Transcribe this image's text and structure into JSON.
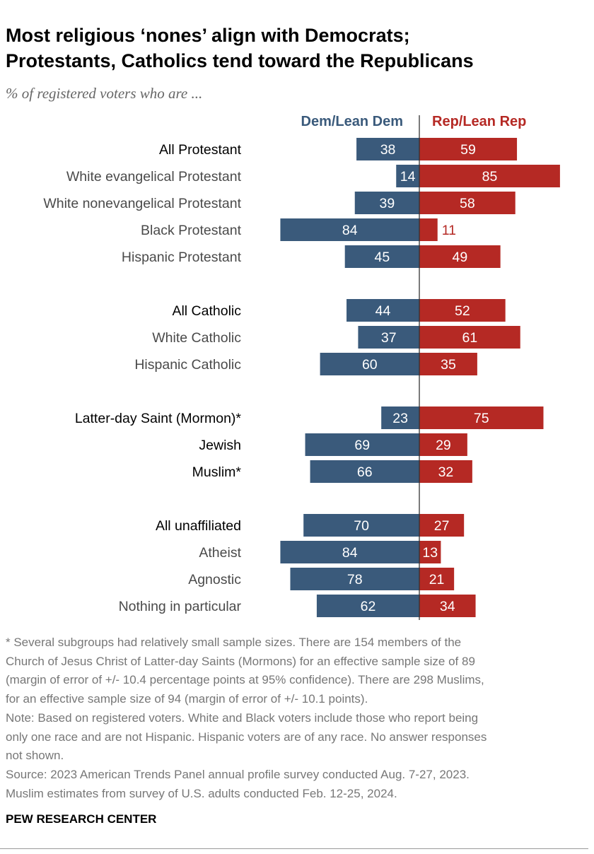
{
  "title_lines": [
    "Most religious ‘nones’ align with Democrats;",
    "Protestants, Catholics tend toward the Republicans"
  ],
  "subtitle": "% of registered voters who are ...",
  "colors": {
    "dem": "#3a5a7b",
    "rep": "#b52924",
    "axis": "#333333"
  },
  "chart_data": {
    "type": "bar",
    "orientation": "diverging-horizontal",
    "categories": [
      "All Protestant",
      "White evangelical Protestant",
      "White nonevangelical Protestant",
      "Black Protestant",
      "Hispanic Protestant",
      "All Catholic",
      "White Catholic",
      "Hispanic Catholic",
      "Latter-day Saint (Mormon)*",
      "Jewish",
      "Muslim*",
      "All unaffiliated",
      "Atheist",
      "Agnostic",
      "Nothing in particular"
    ],
    "category_emphasis": [
      true,
      false,
      false,
      false,
      false,
      true,
      false,
      false,
      true,
      true,
      true,
      true,
      false,
      false,
      false
    ],
    "groups": [
      [
        0,
        1,
        2,
        3,
        4
      ],
      [
        5,
        6,
        7
      ],
      [
        8,
        9,
        10
      ],
      [
        11,
        12,
        13,
        14
      ]
    ],
    "series": [
      {
        "name": "Dem/Lean Dem",
        "values": [
          38,
          14,
          39,
          84,
          45,
          44,
          37,
          60,
          23,
          69,
          66,
          70,
          84,
          78,
          62
        ]
      },
      {
        "name": "Rep/Lean Rep",
        "values": [
          59,
          85,
          58,
          11,
          49,
          52,
          61,
          35,
          75,
          29,
          32,
          27,
          13,
          21,
          34
        ]
      }
    ],
    "xlim": [
      0,
      100
    ]
  },
  "notes": [
    "* Several subgroups had relatively small sample sizes. There are 154 members of the",
    "Church of Jesus Christ of Latter-day Saints (Mormons) for an effective sample size of 89",
    "(margin of error of +/- 10.4 percentage points at 95% confidence). There are 298 Muslims,",
    "for an effective sample size of 94 (margin of error of +/- 10.1 points).",
    "Note: Based on registered voters. White and Black voters include those who report being",
    "only one race and are not Hispanic. Hispanic voters are of any race. No answer responses",
    "not shown.",
    "Source: 2023 American Trends Panel annual profile survey conducted Aug. 7-27, 2023.",
    "Muslim estimates from survey of U.S. adults conducted Feb. 12-25, 2024."
  ],
  "brand": "PEW RESEARCH CENTER"
}
